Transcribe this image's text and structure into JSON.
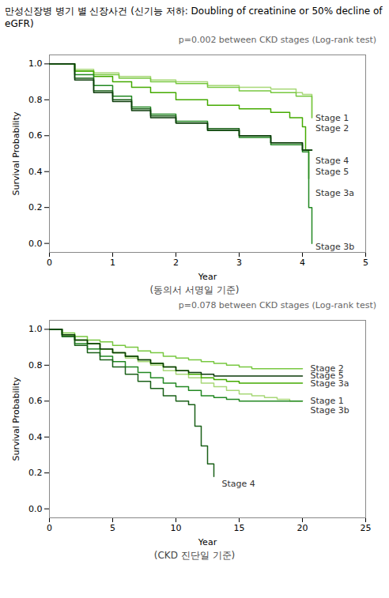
{
  "chart_data": [
    {
      "type": "step",
      "title": "만성신장병 병기 별 신장사건 (신기능 저하: Doubling of creatinine or 50% decline of eGFR)",
      "subtitle": "p=0.002 between CKD stages (Log-rank test)",
      "annotations": [
        "(동의서 서명일 기준)"
      ],
      "x_label": "Year",
      "y_label": "Survival Probability",
      "xlim": [
        0,
        5
      ],
      "ylim": [
        -0.05,
        1.05
      ],
      "xticks": [
        0,
        1,
        2,
        3,
        4,
        5
      ],
      "yticks": [
        {
          "value": 0,
          "label": "0.0"
        },
        0.2,
        0.4,
        0.6,
        0.8,
        {
          "value": 1.0,
          "label": "1.0"
        }
      ],
      "series": [
        {
          "name": "Stage 1",
          "color": "#a8d878",
          "x": [
            0,
            0.4,
            0.7,
            1.1,
            1.6,
            2.0,
            2.5,
            3.0,
            3.5,
            3.9,
            4.0,
            4.15
          ],
          "values": [
            1.0,
            0.97,
            0.95,
            0.93,
            0.91,
            0.9,
            0.88,
            0.87,
            0.86,
            0.84,
            0.83,
            0.7
          ],
          "label_x": 4.18,
          "label_y": 0.7
        },
        {
          "name": "Stage 2",
          "color": "#78c840",
          "x": [
            0,
            0.4,
            0.7,
            1.1,
            1.6,
            2.0,
            2.5,
            3.0,
            3.5,
            3.9,
            4.0,
            4.15
          ],
          "values": [
            1.0,
            0.96,
            0.94,
            0.92,
            0.9,
            0.89,
            0.87,
            0.85,
            0.84,
            0.82,
            0.82,
            0.7
          ],
          "label_x": 4.18,
          "label_y": 0.64
        },
        {
          "name": "Stage 3a",
          "color": "#44aa00",
          "x": [
            0,
            0.4,
            0.7,
            1.0,
            1.3,
            1.6,
            2.0,
            2.5,
            3.0,
            3.5,
            3.8,
            4.0,
            4.05,
            4.1
          ],
          "values": [
            1.0,
            0.96,
            0.93,
            0.9,
            0.87,
            0.84,
            0.8,
            0.77,
            0.75,
            0.73,
            0.7,
            0.65,
            0.52,
            0.36
          ],
          "label_x": 4.18,
          "label_y": 0.28
        },
        {
          "name": "Stage 3b",
          "color": "#228822",
          "x": [
            0,
            0.4,
            0.7,
            1.0,
            1.3,
            1.6,
            2.0,
            2.5,
            3.0,
            3.5,
            4.0,
            4.05,
            4.1,
            4.15
          ],
          "values": [
            1.0,
            0.94,
            0.88,
            0.82,
            0.76,
            0.72,
            0.68,
            0.63,
            0.59,
            0.55,
            0.51,
            0.51,
            0.2,
            0.0
          ],
          "label_x": 4.18,
          "label_y": -0.02
        },
        {
          "name": "Stage 4",
          "color": "#1a6018",
          "x": [
            0,
            0.4,
            0.7,
            1.0,
            1.3,
            1.6,
            2.0,
            2.5,
            3.0,
            3.5,
            4.0,
            4.15
          ],
          "values": [
            1.0,
            0.92,
            0.85,
            0.8,
            0.75,
            0.71,
            0.67,
            0.64,
            0.6,
            0.56,
            0.52,
            0.52
          ],
          "label_x": 4.18,
          "label_y": 0.46
        },
        {
          "name": "Stage 5",
          "color": "#0a3a08",
          "x": [
            0,
            0.4,
            0.7,
            1.0,
            1.3,
            1.6,
            2.0,
            2.5,
            3.0,
            3.5,
            4.0,
            4.15
          ],
          "values": [
            1.0,
            0.91,
            0.84,
            0.79,
            0.74,
            0.7,
            0.67,
            0.63,
            0.6,
            0.56,
            0.52,
            0.52
          ],
          "label_x": 4.18,
          "label_y": 0.4
        }
      ]
    },
    {
      "type": "step",
      "subtitle": "p=0.078 between CKD stages (Log-rank test)",
      "annotations": [
        "(CKD 진단일 기준)"
      ],
      "x_label": "Year",
      "y_label": "Survival Probability",
      "xlim": [
        0,
        25
      ],
      "ylim": [
        -0.05,
        1.05
      ],
      "xticks": [
        0,
        5,
        10,
        15,
        20,
        25
      ],
      "yticks": [
        {
          "value": 0,
          "label": "0.0"
        },
        0.2,
        0.4,
        0.6,
        0.8,
        {
          "value": 1.0,
          "label": "1.0"
        }
      ],
      "series": [
        {
          "name": "Stage 1",
          "color": "#a8d878",
          "x": [
            0,
            1,
            2,
            3,
            4,
            5,
            6,
            7,
            8,
            9,
            10,
            11,
            12,
            13,
            14,
            15,
            16,
            17,
            18,
            19,
            20
          ],
          "values": [
            1.0,
            0.97,
            0.94,
            0.92,
            0.89,
            0.87,
            0.84,
            0.82,
            0.8,
            0.77,
            0.75,
            0.73,
            0.7,
            0.68,
            0.66,
            0.64,
            0.63,
            0.62,
            0.61,
            0.6,
            0.6
          ],
          "label_x": 20.5,
          "label_y": 0.6
        },
        {
          "name": "Stage 2",
          "color": "#78c840",
          "x": [
            0,
            1,
            2,
            3,
            4,
            5,
            6,
            7,
            8,
            9,
            10,
            11,
            12,
            13,
            14,
            15,
            16,
            17,
            18,
            19,
            20
          ],
          "values": [
            1.0,
            0.98,
            0.96,
            0.94,
            0.93,
            0.91,
            0.9,
            0.88,
            0.87,
            0.85,
            0.84,
            0.83,
            0.82,
            0.81,
            0.8,
            0.79,
            0.78,
            0.78,
            0.78,
            0.78,
            0.78
          ],
          "label_x": 20.5,
          "label_y": 0.78
        },
        {
          "name": "Stage 3a",
          "color": "#44aa00",
          "x": [
            0,
            1,
            2,
            3,
            4,
            5,
            6,
            7,
            8,
            9,
            10,
            11,
            12,
            13,
            14,
            15,
            16,
            17,
            18,
            19,
            20
          ],
          "values": [
            1.0,
            0.97,
            0.94,
            0.92,
            0.89,
            0.87,
            0.85,
            0.83,
            0.81,
            0.79,
            0.77,
            0.75,
            0.73,
            0.72,
            0.71,
            0.7,
            0.7,
            0.7,
            0.7,
            0.7,
            0.7
          ],
          "label_x": 20.5,
          "label_y": 0.7
        },
        {
          "name": "Stage 3b",
          "color": "#228822",
          "x": [
            0,
            1,
            2,
            3,
            4,
            5,
            6,
            7,
            8,
            9,
            10,
            11,
            12,
            13,
            14,
            15,
            16,
            17,
            18,
            19,
            20
          ],
          "values": [
            1.0,
            0.96,
            0.92,
            0.89,
            0.85,
            0.82,
            0.79,
            0.76,
            0.73,
            0.7,
            0.68,
            0.66,
            0.63,
            0.62,
            0.61,
            0.6,
            0.6,
            0.6,
            0.6,
            0.6,
            0.6
          ],
          "label_x": 20.5,
          "label_y": 0.55
        },
        {
          "name": "Stage 4",
          "color": "#1a6018",
          "x": [
            0,
            1,
            2,
            3,
            4,
            5,
            6,
            7,
            8,
            9,
            10,
            11,
            11.5,
            12,
            12.5,
            13
          ],
          "values": [
            1.0,
            0.96,
            0.91,
            0.87,
            0.83,
            0.79,
            0.75,
            0.71,
            0.67,
            0.63,
            0.6,
            0.58,
            0.46,
            0.35,
            0.25,
            0.18
          ],
          "label_x": 13.5,
          "label_y": 0.14
        },
        {
          "name": "Stage 5",
          "color": "#0a3a08",
          "x": [
            0,
            1,
            2,
            3,
            4,
            5,
            6,
            7,
            8,
            9,
            10,
            11,
            12,
            13,
            14,
            15,
            16,
            17,
            18,
            19,
            20
          ],
          "values": [
            1.0,
            0.97,
            0.94,
            0.92,
            0.89,
            0.87,
            0.85,
            0.83,
            0.81,
            0.79,
            0.77,
            0.76,
            0.75,
            0.74,
            0.74,
            0.74,
            0.74,
            0.74,
            0.74,
            0.74,
            0.74
          ],
          "label_x": 20.5,
          "label_y": 0.74
        }
      ]
    }
  ]
}
